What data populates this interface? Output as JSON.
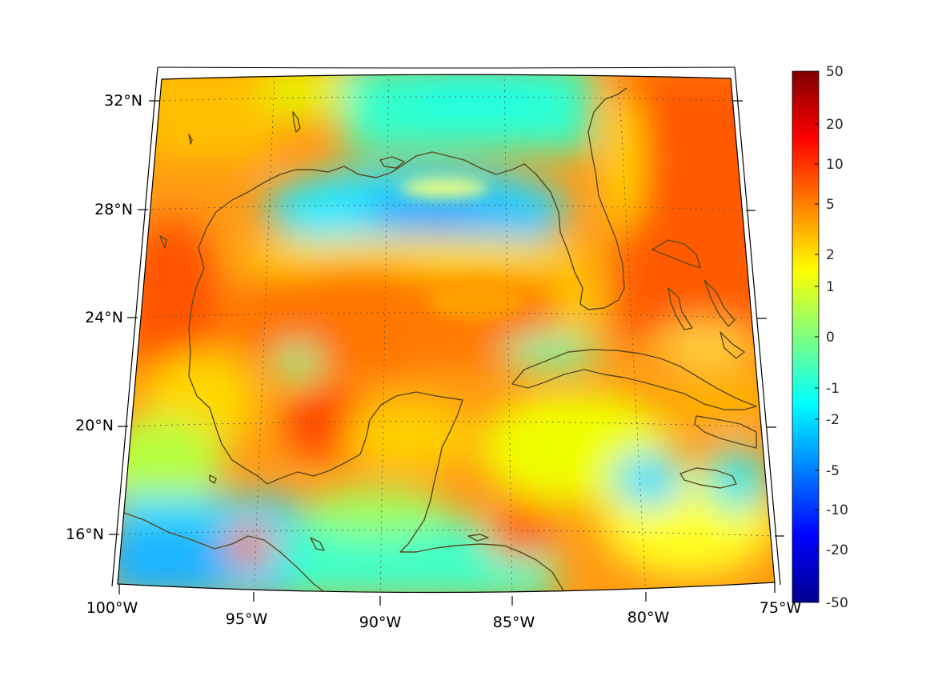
{
  "map": {
    "latitude_labels": [
      "32°N",
      "28°N",
      "24°N",
      "20°N",
      "16°N"
    ],
    "longitude_labels": [
      "100°W",
      "95°W",
      "90°W",
      "85°W",
      "80°W",
      "75°W"
    ],
    "coastline_color": "#5a4a1e",
    "frame_color": "#000000",
    "grid_color": "#555555",
    "colormap": "jet"
  },
  "colorbar": {
    "tick_labels": [
      "50",
      "20",
      "10",
      "5",
      "2",
      "1",
      "0",
      "-1",
      "-2",
      "-5",
      "-10",
      "-20",
      "-50"
    ],
    "max_color": "#800000",
    "min_color": "#00008f"
  }
}
